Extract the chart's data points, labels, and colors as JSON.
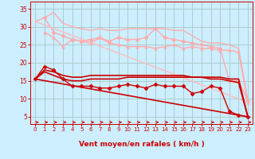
{
  "background_color": "#cceeff",
  "grid_color": "#aacccc",
  "xlabel": "Vent moyen/en rafales ( km/h )",
  "xlabel_color": "#cc0000",
  "tick_color": "#cc0000",
  "xlim": [
    -0.5,
    23.5
  ],
  "ylim": [
    3,
    37
  ],
  "yticks": [
    5,
    10,
    15,
    20,
    25,
    30,
    35
  ],
  "xticks": [
    0,
    1,
    2,
    3,
    4,
    5,
    6,
    7,
    8,
    9,
    10,
    11,
    12,
    13,
    14,
    15,
    16,
    17,
    18,
    19,
    20,
    21,
    22,
    23
  ],
  "lines": [
    {
      "x": [
        0,
        1,
        2,
        3,
        4,
        5,
        6,
        7,
        8,
        9,
        10,
        11,
        12,
        13,
        14,
        15,
        16,
        17,
        18,
        19,
        20,
        21,
        22,
        23
      ],
      "y": [
        31.5,
        32.5,
        34.0,
        31.0,
        30.0,
        29.5,
        29.0,
        29.5,
        29.0,
        29.0,
        29.5,
        29.5,
        29.5,
        29.5,
        29.5,
        29.0,
        29.0,
        27.5,
        26.0,
        25.5,
        25.5,
        25.0,
        24.0,
        9.5
      ],
      "color": "#ffaaaa",
      "marker": null,
      "lw": 1.0
    },
    {
      "x": [
        1,
        2,
        3,
        4,
        5,
        6,
        7,
        8,
        9,
        10,
        11,
        12,
        13,
        14,
        15,
        16,
        17,
        18,
        19,
        20,
        21,
        22,
        23
      ],
      "y": [
        32.5,
        28.5,
        27.5,
        26.5,
        26.0,
        26.5,
        27.0,
        26.0,
        27.0,
        26.5,
        26.5,
        27.0,
        29.5,
        27.0,
        26.5,
        26.0,
        25.5,
        25.0,
        24.5,
        24.0,
        15.0,
        15.0,
        9.5
      ],
      "color": "#ffaaaa",
      "marker": "D",
      "lw": 1.0,
      "ms": 2.5
    },
    {
      "x": [
        1,
        2,
        3,
        4,
        5,
        6,
        7,
        8,
        9,
        10,
        11,
        12,
        13,
        14,
        15,
        16,
        17,
        18,
        19,
        20,
        21,
        22,
        23
      ],
      "y": [
        28.5,
        27.0,
        24.5,
        26.5,
        26.0,
        25.5,
        27.0,
        25.5,
        25.0,
        24.5,
        24.5,
        24.5,
        24.0,
        24.5,
        25.0,
        24.0,
        24.5,
        24.0,
        24.0,
        23.5,
        23.5,
        23.0,
        9.0
      ],
      "color": "#ffaaaa",
      "marker": "^",
      "lw": 1.0,
      "ms": 2.5
    },
    {
      "x": [
        0,
        23
      ],
      "y": [
        31.5,
        9.0
      ],
      "color": "#ffbbbb",
      "marker": null,
      "lw": 1.0
    },
    {
      "x": [
        0,
        1,
        2,
        3,
        4,
        5,
        6,
        7,
        8,
        9,
        10,
        11,
        12,
        13,
        14,
        15,
        16,
        17,
        18,
        19,
        20,
        21,
        22,
        23
      ],
      "y": [
        15.5,
        19.0,
        18.0,
        15.5,
        13.5,
        13.5,
        13.5,
        13.0,
        13.0,
        13.5,
        14.0,
        13.5,
        13.0,
        14.0,
        13.5,
        13.5,
        13.5,
        11.5,
        12.0,
        13.5,
        13.0,
        6.5,
        5.5,
        5.0
      ],
      "color": "#cc0000",
      "marker": "D",
      "lw": 1.0,
      "ms": 2.5
    },
    {
      "x": [
        0,
        1,
        2,
        3,
        4,
        5,
        6,
        7,
        8,
        9,
        10,
        11,
        12,
        13,
        14,
        15,
        16,
        17,
        18,
        19,
        20,
        21,
        22,
        23
      ],
      "y": [
        15.5,
        18.0,
        17.5,
        16.5,
        16.0,
        16.0,
        16.5,
        16.5,
        16.5,
        16.5,
        16.5,
        16.5,
        16.5,
        16.5,
        16.5,
        16.5,
        16.5,
        16.0,
        16.0,
        16.0,
        16.0,
        15.5,
        15.5,
        5.0
      ],
      "color": "#cc0000",
      "marker": null,
      "lw": 1.2
    },
    {
      "x": [
        0,
        1,
        2,
        3,
        4,
        5,
        6,
        7,
        8,
        9,
        10,
        11,
        12,
        13,
        14,
        15,
        16,
        17,
        18,
        19,
        20,
        21,
        22,
        23
      ],
      "y": [
        15.5,
        17.5,
        16.5,
        15.5,
        15.0,
        15.0,
        15.5,
        15.5,
        15.5,
        15.5,
        16.0,
        16.0,
        16.0,
        16.0,
        16.0,
        16.0,
        16.0,
        16.0,
        16.0,
        15.5,
        15.5,
        15.0,
        14.5,
        5.0
      ],
      "color": "#cc0000",
      "marker": null,
      "lw": 1.2
    },
    {
      "x": [
        0,
        23
      ],
      "y": [
        15.5,
        5.0
      ],
      "color": "#cc0000",
      "marker": null,
      "lw": 1.2
    }
  ],
  "wind_arrows": {
    "x": [
      0,
      1,
      2,
      3,
      4,
      5,
      6,
      7,
      8,
      9,
      10,
      11,
      12,
      13,
      14,
      15,
      16,
      17,
      18,
      19,
      20,
      21,
      22,
      23
    ],
    "color": "#cc0000"
  }
}
